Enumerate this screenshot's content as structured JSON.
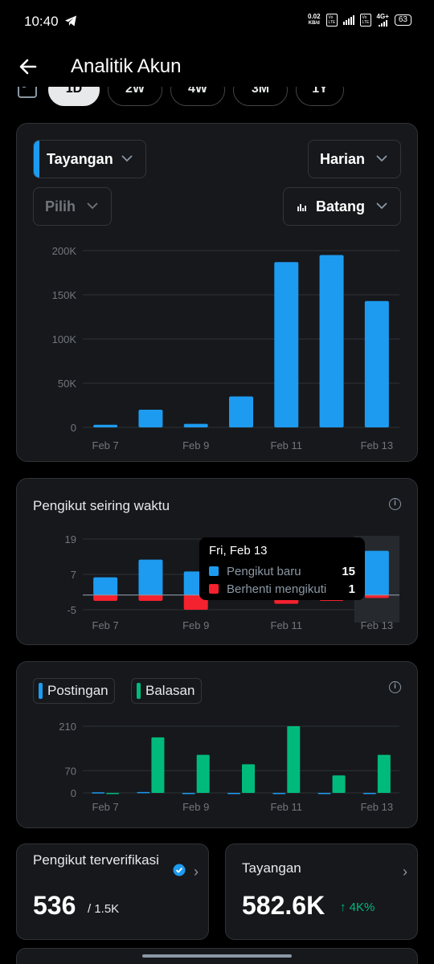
{
  "status_bar": {
    "time": "10:40",
    "net_speed_value": "0.02",
    "net_speed_unit": "KB/d",
    "volte1": "Vo LTE",
    "volte2": "Vo LTE",
    "network": "4G+",
    "battery": "63",
    "icons": [
      "telegram-icon",
      "signal-icon",
      "battery-icon"
    ]
  },
  "header": {
    "title": "Analitik Akun",
    "back_icon": "arrow-left-icon"
  },
  "range_tabs": [
    {
      "label": "1D",
      "active": true
    },
    {
      "label": "2W",
      "active": false
    },
    {
      "label": "4W",
      "active": false
    },
    {
      "label": "3M",
      "active": false
    },
    {
      "label": "1Y",
      "active": false
    }
  ],
  "chart1": {
    "metric_dropdown": "Tayangan",
    "period_dropdown": "Harian",
    "compare_dropdown": "Pilih",
    "type_dropdown": "Batang",
    "colors": {
      "bar": "#1d9bf0",
      "accent": "#1d9bf0"
    }
  },
  "chart2": {
    "title": "Pengikut seiring waktu",
    "tooltip": {
      "date": "Fri, Feb 13",
      "rows": [
        {
          "label": "Pengikut baru",
          "value": "15",
          "color": "#1d9bf0"
        },
        {
          "label": "Berhenti mengikuti",
          "value": "1",
          "color": "#f4212e"
        }
      ]
    }
  },
  "chart3": {
    "legend": [
      {
        "label": "Postingan",
        "color": "#1d9bf0"
      },
      {
        "label": "Balasan",
        "color": "#00ba7c"
      }
    ]
  },
  "stats": {
    "verified_followers": {
      "label": "Pengikut terverifikasi",
      "value": "536",
      "sub": "/ 1.5K"
    },
    "impressions": {
      "label": "Tayangan",
      "value": "582.6K",
      "growth": "↑ 4K%"
    }
  },
  "chart_data": [
    {
      "type": "bar",
      "categories": [
        "Feb 7",
        "Feb 8",
        "Feb 9",
        "Feb 10",
        "Feb 11",
        "Feb 12",
        "Feb 13"
      ],
      "x_tick_labels": [
        "Feb 7",
        "Feb 9",
        "Feb 11",
        "Feb 13"
      ],
      "values": [
        3000,
        20000,
        4000,
        35000,
        187000,
        195000,
        143000
      ],
      "ylim": [
        0,
        200000
      ],
      "y_ticks": [
        "0",
        "50K",
        "100K",
        "150K",
        "200K"
      ],
      "y_tick_values": [
        0,
        50000,
        100000,
        150000,
        200000
      ],
      "grid": true
    },
    {
      "type": "bar",
      "categories": [
        "Feb 7",
        "Feb 8",
        "Feb 9",
        "Feb 10",
        "Feb 11",
        "Feb 12",
        "Feb 13"
      ],
      "x_tick_labels": [
        "Feb 7",
        "Feb 9",
        "Feb 11",
        "Feb 13"
      ],
      "series": [
        {
          "name": "Pengikut baru",
          "values": [
            6,
            12,
            8,
            5,
            19,
            4,
            15
          ],
          "color": "#1d9bf0"
        },
        {
          "name": "Berhenti mengikuti",
          "values": [
            -2,
            -2,
            -5,
            -1,
            -3,
            -2,
            -1
          ],
          "color": "#f4212e"
        }
      ],
      "ylim": [
        -5,
        19
      ],
      "y_ticks": [
        "-5",
        "7",
        "19"
      ],
      "y_tick_values": [
        -5,
        7,
        19
      ],
      "grid": true
    },
    {
      "type": "bar",
      "categories": [
        "Feb 7",
        "Feb 8",
        "Feb 9",
        "Feb 10",
        "Feb 11",
        "Feb 12",
        "Feb 13"
      ],
      "x_tick_labels": [
        "Feb 7",
        "Feb 9",
        "Feb 11",
        "Feb 13"
      ],
      "series": [
        {
          "name": "Postingan",
          "values": [
            2,
            3,
            0,
            0,
            0,
            0,
            0
          ],
          "color": "#1d9bf0"
        },
        {
          "name": "Balasan",
          "values": [
            0,
            175,
            120,
            90,
            210,
            55,
            120
          ],
          "color": "#00ba7c"
        }
      ],
      "ylim": [
        0,
        210
      ],
      "y_ticks": [
        "0",
        "70",
        "210"
      ],
      "y_tick_values": [
        0,
        70,
        210
      ],
      "grid": true
    }
  ]
}
